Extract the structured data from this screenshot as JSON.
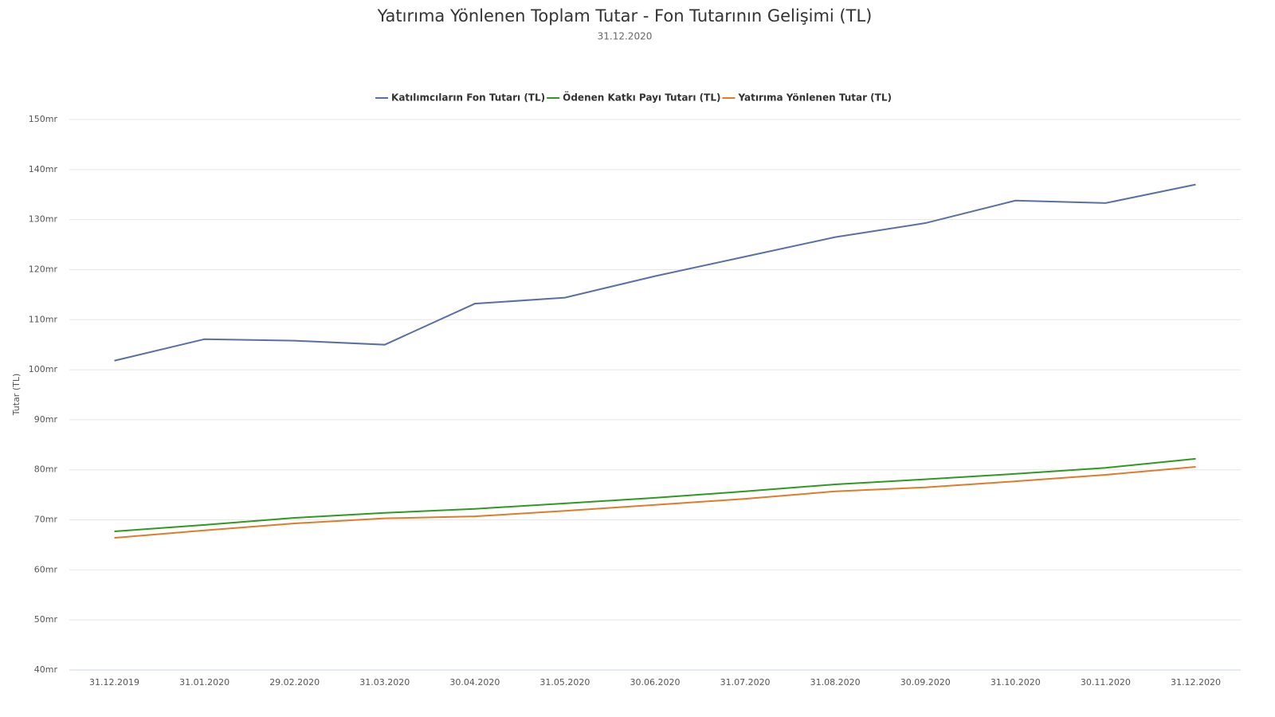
{
  "chart_data": {
    "type": "line",
    "title": "Yatırıma Yönlenen Toplam Tutar - Fon Tutarının Gelişimi (TL)",
    "subtitle": "31.12.2020",
    "y_label": "Tutar (TL)",
    "categories": [
      "31.12.2019",
      "31.01.2020",
      "29.02.2020",
      "31.03.2020",
      "30.04.2020",
      "31.05.2020",
      "30.06.2020",
      "31.07.2020",
      "31.08.2020",
      "30.09.2020",
      "31.10.2020",
      "30.11.2020",
      "31.12.2020"
    ],
    "series": [
      {
        "name": "Katılımcıların Fon Tutarı (TL)",
        "color": "#5b6fa6",
        "values": [
          101.8,
          106.1,
          105.8,
          105.0,
          113.2,
          114.4,
          118.7,
          122.6,
          126.5,
          129.3,
          133.8,
          133.3,
          137.0
        ]
      },
      {
        "name": "Ödenen Katkı Payı Tutarı (TL)",
        "color": "#2e9a1f",
        "values": [
          67.7,
          69.0,
          70.4,
          71.4,
          72.2,
          73.3,
          74.4,
          75.7,
          77.1,
          78.1,
          79.2,
          80.4,
          82.2
        ]
      },
      {
        "name": "Yatırıma Yönlenen Tutar (TL)",
        "color": "#e07b2a",
        "values": [
          66.4,
          67.9,
          69.3,
          70.3,
          70.7,
          71.8,
          73.0,
          74.2,
          75.7,
          76.5,
          77.7,
          79.0,
          80.6
        ]
      }
    ],
    "ylim": [
      40,
      150
    ],
    "yticks": [
      {
        "value": 40,
        "label": "40mr"
      },
      {
        "value": 50,
        "label": "50mr"
      },
      {
        "value": 60,
        "label": "60mr"
      },
      {
        "value": 70,
        "label": "70mr"
      },
      {
        "value": 80,
        "label": "80mr"
      },
      {
        "value": 90,
        "label": "90mr"
      },
      {
        "value": 100,
        "label": "100mr"
      },
      {
        "value": 110,
        "label": "110mr"
      },
      {
        "value": 120,
        "label": "120mr"
      },
      {
        "value": 130,
        "label": "130mr"
      },
      {
        "value": 140,
        "label": "140mr"
      },
      {
        "value": 150,
        "label": "150mr"
      }
    ],
    "grid": true,
    "legend": "top"
  }
}
